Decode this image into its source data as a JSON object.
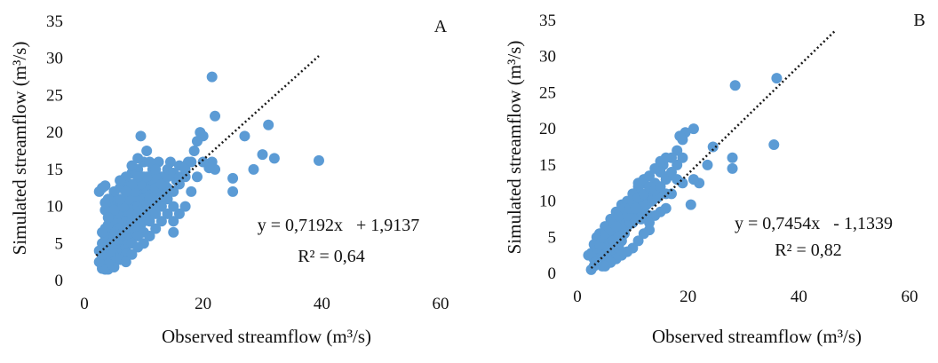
{
  "chart_data": [
    {
      "type": "scatter",
      "panel_label": "A",
      "xlabel": "Observed streamflow  (m³/s)",
      "ylabel": "Simulated  streamflow  (m³/s)",
      "xlim": [
        0,
        60
      ],
      "ylim": [
        0,
        35
      ],
      "xticks": [
        0,
        20,
        40,
        60
      ],
      "yticks": [
        0,
        5,
        10,
        15,
        20,
        25,
        30,
        35
      ],
      "grid": false,
      "point_color": "#5b9bd5",
      "trendline": {
        "slope": 0.7192,
        "intercept": 1.9137,
        "x_range": [
          2,
          39.5
        ],
        "style": "dotted",
        "color": "#1a1a1a"
      },
      "equation": "y = 0,7192x   + 1,9137",
      "r2": "R² = 0,64",
      "points": [
        [
          39.5,
          16.2
        ],
        [
          32,
          16.5
        ],
        [
          31,
          21
        ],
        [
          30,
          17
        ],
        [
          28.5,
          15
        ],
        [
          27,
          19.5
        ],
        [
          25,
          12
        ],
        [
          25,
          13.8
        ],
        [
          21.5,
          27.5
        ],
        [
          22,
          22.2
        ],
        [
          21.5,
          16
        ],
        [
          22,
          15
        ],
        [
          21,
          15.2
        ],
        [
          20,
          19.5
        ],
        [
          19.5,
          20
        ],
        [
          19,
          18.8
        ],
        [
          18.5,
          17.5
        ],
        [
          18,
          16
        ],
        [
          17.5,
          16
        ],
        [
          17,
          14
        ],
        [
          16,
          15.5
        ],
        [
          15.5,
          13.5
        ],
        [
          15,
          10
        ],
        [
          15,
          6.5
        ],
        [
          14.5,
          16
        ],
        [
          14,
          15
        ],
        [
          13.5,
          12
        ],
        [
          13,
          14
        ],
        [
          12.5,
          16
        ],
        [
          12,
          13
        ],
        [
          11.5,
          15
        ],
        [
          11,
          12
        ],
        [
          10.5,
          17.5
        ],
        [
          10,
          14
        ],
        [
          9.5,
          19.5
        ],
        [
          9,
          15
        ],
        [
          8.5,
          13
        ],
        [
          8,
          14.5
        ],
        [
          7.5,
          12
        ],
        [
          7,
          13
        ],
        [
          6.5,
          11
        ],
        [
          6,
          12.5
        ],
        [
          5.5,
          10
        ],
        [
          5,
          11
        ],
        [
          4.5,
          9
        ],
        [
          4,
          10
        ],
        [
          3.5,
          9.5
        ],
        [
          3,
          12.5
        ],
        [
          2.5,
          12
        ],
        [
          3.5,
          12.8
        ],
        [
          2.5,
          4
        ],
        [
          3,
          3
        ],
        [
          3.5,
          2.5
        ],
        [
          4,
          3
        ],
        [
          4.5,
          2
        ],
        [
          5,
          3.5
        ],
        [
          5.5,
          4
        ],
        [
          6,
          5
        ],
        [
          6.5,
          5.5
        ],
        [
          7,
          6
        ],
        [
          7.5,
          7
        ],
        [
          8,
          7.5
        ],
        [
          8.5,
          8
        ],
        [
          9,
          8.5
        ],
        [
          9.5,
          9
        ],
        [
          10,
          9
        ],
        [
          10.5,
          10
        ],
        [
          11,
          10.5
        ],
        [
          11.5,
          11
        ],
        [
          12,
          11.5
        ],
        [
          12.5,
          12
        ],
        [
          13,
          12.5
        ],
        [
          13.5,
          13
        ],
        [
          14,
          12.5
        ],
        [
          3,
          2
        ],
        [
          3.5,
          1.5
        ],
        [
          4,
          1.5
        ],
        [
          4.5,
          2.8
        ],
        [
          5,
          2.5
        ],
        [
          5.5,
          3
        ],
        [
          6,
          3.5
        ],
        [
          6.5,
          4
        ],
        [
          7,
          4.5
        ],
        [
          7.5,
          5
        ],
        [
          8,
          6
        ],
        [
          8.5,
          6.5
        ],
        [
          9,
          7
        ],
        [
          9.5,
          7.5
        ],
        [
          10,
          8
        ],
        [
          10.5,
          8.5
        ],
        [
          11,
          9
        ],
        [
          11.5,
          9.5
        ],
        [
          12,
          10
        ],
        [
          4,
          6
        ],
        [
          4.5,
          7
        ],
        [
          5,
          8
        ],
        [
          5.5,
          7
        ],
        [
          6,
          9
        ],
        [
          6.5,
          8
        ],
        [
          7,
          10
        ],
        [
          7.5,
          9
        ],
        [
          8,
          11
        ],
        [
          8.5,
          10
        ],
        [
          9,
          12
        ],
        [
          9.5,
          11
        ],
        [
          10,
          12.5
        ],
        [
          10.5,
          12
        ],
        [
          11,
          13
        ],
        [
          11.5,
          13.5
        ],
        [
          12,
          14
        ],
        [
          3,
          5
        ],
        [
          3.5,
          6
        ],
        [
          4,
          7.5
        ],
        [
          4.5,
          5
        ],
        [
          5,
          6
        ],
        [
          5.5,
          9
        ],
        [
          6,
          7
        ],
        [
          6.5,
          10
        ],
        [
          7,
          8
        ],
        [
          7.5,
          11
        ],
        [
          8,
          9
        ],
        [
          8.5,
          12
        ],
        [
          9,
          10
        ],
        [
          9.5,
          13
        ],
        [
          10,
          11
        ],
        [
          10.5,
          14
        ],
        [
          11,
          11.5
        ],
        [
          12,
          12
        ],
        [
          13,
          11
        ],
        [
          14,
          11
        ],
        [
          15,
          12
        ],
        [
          16,
          13
        ],
        [
          13,
          10
        ],
        [
          12,
          9
        ],
        [
          11,
          8
        ],
        [
          10,
          6.5
        ],
        [
          9,
          6
        ],
        [
          8,
          5
        ],
        [
          7,
          3.5
        ],
        [
          6,
          2.8
        ],
        [
          5,
          1.8
        ],
        [
          4,
          2.2
        ],
        [
          3,
          1.6
        ],
        [
          2.5,
          2.5
        ],
        [
          3,
          3.5
        ],
        [
          3.5,
          4.5
        ],
        [
          4,
          4
        ],
        [
          4.5,
          4
        ],
        [
          5,
          5
        ],
        [
          5.5,
          5.5
        ],
        [
          6,
          6
        ],
        [
          6.5,
          6.5
        ],
        [
          7,
          7
        ],
        [
          7.5,
          7.5
        ],
        [
          8,
          8
        ],
        [
          8.5,
          8.5
        ],
        [
          9,
          9
        ],
        [
          9.5,
          9.5
        ],
        [
          10,
          10
        ],
        [
          10.5,
          10.5
        ],
        [
          11,
          11
        ],
        [
          12,
          12.5
        ],
        [
          13,
          13
        ],
        [
          14,
          14
        ],
        [
          15,
          14.5
        ],
        [
          16,
          14
        ],
        [
          17,
          15
        ],
        [
          9,
          14
        ],
        [
          8,
          13
        ],
        [
          7,
          12
        ],
        [
          6,
          11
        ],
        [
          5,
          9.5
        ],
        [
          4,
          8.5
        ],
        [
          3.5,
          7
        ],
        [
          3,
          6.5
        ],
        [
          10,
          16
        ],
        [
          11,
          16
        ],
        [
          12,
          15
        ],
        [
          9,
          16.5
        ],
        [
          8,
          15.5
        ],
        [
          7,
          14
        ],
        [
          6,
          13.5
        ],
        [
          5,
          12
        ],
        [
          4,
          11
        ],
        [
          3.5,
          10.5
        ],
        [
          14,
          9
        ],
        [
          13,
          8
        ],
        [
          12,
          7
        ],
        [
          11,
          6
        ],
        [
          10,
          5
        ],
        [
          9,
          4.5
        ],
        [
          8,
          3.5
        ],
        [
          7,
          2.5
        ],
        [
          15,
          8
        ],
        [
          16,
          9
        ],
        [
          17,
          10
        ],
        [
          18,
          12
        ],
        [
          19,
          14
        ],
        [
          20,
          16
        ]
      ]
    },
    {
      "type": "scatter",
      "panel_label": "B",
      "xlabel": "Observed streamflow  (m³/s)",
      "ylabel": "Simulated  streamflow  (m³/s)",
      "xlim": [
        0,
        60
      ],
      "ylim": [
        0,
        35
      ],
      "xticks": [
        0,
        20,
        40,
        60
      ],
      "yticks": [
        0,
        5,
        10,
        15,
        20,
        25,
        30,
        35
      ],
      "grid": false,
      "point_color": "#5b9bd5",
      "trendline": {
        "slope": 0.7454,
        "intercept": -1.1339,
        "x_range": [
          2.5,
          46.5
        ],
        "style": "dotted",
        "color": "#1a1a1a"
      },
      "equation": "y = 0,7454x   - 1,1339",
      "r2": "R² = 0,82",
      "points": [
        [
          36,
          27
        ],
        [
          28.5,
          26
        ],
        [
          35.5,
          17.8
        ],
        [
          28,
          16
        ],
        [
          28,
          14.5
        ],
        [
          24.5,
          17.5
        ],
        [
          23.5,
          15
        ],
        [
          22,
          12.5
        ],
        [
          21,
          20
        ],
        [
          21,
          13
        ],
        [
          20.5,
          9.5
        ],
        [
          19.5,
          19.5
        ],
        [
          19,
          18.5
        ],
        [
          19,
          16
        ],
        [
          18.5,
          19
        ],
        [
          18,
          17
        ],
        [
          18,
          15
        ],
        [
          17,
          16
        ],
        [
          16.5,
          13.5
        ],
        [
          16,
          13
        ],
        [
          15.5,
          15
        ],
        [
          15,
          14
        ],
        [
          15,
          11
        ],
        [
          14.5,
          12
        ],
        [
          14,
          12.5
        ],
        [
          13.5,
          11
        ],
        [
          13,
          8
        ],
        [
          13,
          6
        ],
        [
          12.5,
          10
        ],
        [
          12,
          12.5
        ],
        [
          12,
          9
        ],
        [
          11.5,
          11
        ],
        [
          11.5,
          7.5
        ],
        [
          11,
          12
        ],
        [
          11,
          9.5
        ],
        [
          10.5,
          10.5
        ],
        [
          10.5,
          8
        ],
        [
          10,
          9.5
        ],
        [
          10,
          7
        ],
        [
          9.5,
          10
        ],
        [
          9.5,
          8
        ],
        [
          9,
          9
        ],
        [
          9,
          6.5
        ],
        [
          8.5,
          8
        ],
        [
          8.5,
          5.5
        ],
        [
          8,
          7.5
        ],
        [
          8,
          4.5
        ],
        [
          7.5,
          6.5
        ],
        [
          7.5,
          3.5
        ],
        [
          7,
          7
        ],
        [
          7,
          5
        ],
        [
          6.5,
          6
        ],
        [
          6.5,
          3
        ],
        [
          6,
          4.5
        ],
        [
          6,
          2.5
        ],
        [
          5.5,
          5
        ],
        [
          5.5,
          2
        ],
        [
          5,
          3.5
        ],
        [
          5,
          1.5
        ],
        [
          4.5,
          4
        ],
        [
          4.5,
          1
        ],
        [
          4,
          3
        ],
        [
          4,
          1.5
        ],
        [
          3.5,
          2.5
        ],
        [
          3.5,
          5
        ],
        [
          3,
          2
        ],
        [
          3,
          1
        ],
        [
          2.5,
          0.5
        ],
        [
          2,
          2.5
        ],
        [
          2.5,
          2.8
        ],
        [
          4,
          5.5
        ],
        [
          5,
          6.5
        ],
        [
          6,
          7.5
        ],
        [
          7,
          8.5
        ],
        [
          8,
          9.5
        ],
        [
          9,
          10
        ],
        [
          10,
          11
        ],
        [
          11,
          12.5
        ],
        [
          12,
          13
        ],
        [
          13,
          13.5
        ],
        [
          14,
          14.5
        ],
        [
          15,
          15.5
        ],
        [
          16,
          16
        ],
        [
          17,
          14
        ],
        [
          18,
          13
        ],
        [
          19,
          12.5
        ],
        [
          17,
          11
        ],
        [
          16,
          9
        ],
        [
          15,
          8.5
        ],
        [
          14,
          8
        ],
        [
          13,
          7
        ],
        [
          12,
          5.5
        ],
        [
          11,
          4.5
        ],
        [
          10,
          3.5
        ],
        [
          9,
          3
        ],
        [
          8,
          2.5
        ],
        [
          7,
          2
        ],
        [
          6,
          1.5
        ],
        [
          5,
          1
        ],
        [
          4.5,
          2.5
        ],
        [
          5.5,
          3.5
        ],
        [
          6.5,
          4.5
        ],
        [
          7.5,
          5.5
        ],
        [
          8.5,
          6.5
        ],
        [
          9.5,
          7
        ],
        [
          10.5,
          7.5
        ],
        [
          11.5,
          8.5
        ],
        [
          12.5,
          9.5
        ],
        [
          13.5,
          10
        ],
        [
          14.5,
          10.5
        ],
        [
          3,
          4
        ],
        [
          3.5,
          3.5
        ],
        [
          4,
          4
        ],
        [
          4.5,
          5
        ],
        [
          5,
          5.5
        ],
        [
          5.5,
          6.5
        ],
        [
          6,
          6
        ],
        [
          6.5,
          7
        ],
        [
          7,
          6.5
        ],
        [
          7.5,
          8
        ],
        [
          8,
          8.5
        ],
        [
          8.5,
          9
        ],
        [
          9,
          8
        ],
        [
          9.5,
          9
        ],
        [
          10,
          10
        ],
        [
          10.5,
          9
        ],
        [
          11,
          10.5
        ],
        [
          12,
          11
        ],
        [
          13,
          12
        ],
        [
          14,
          11.5
        ],
        [
          15,
          12
        ],
        [
          16,
          11
        ]
      ]
    }
  ]
}
